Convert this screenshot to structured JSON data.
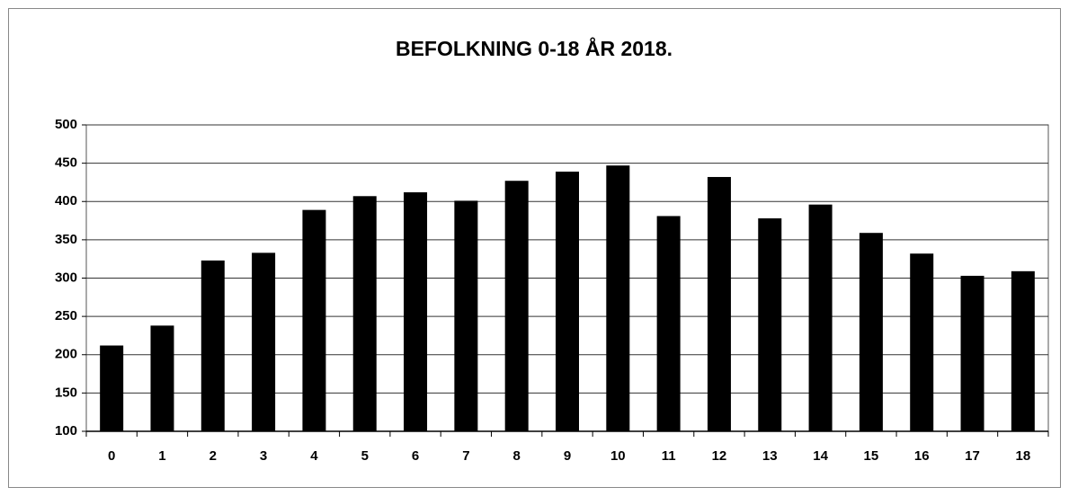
{
  "chart_data": {
    "type": "bar",
    "title": "BEFOLKNING 0-18 ÅR 2018.",
    "categories": [
      "0",
      "1",
      "2",
      "3",
      "4",
      "5",
      "6",
      "7",
      "8",
      "9",
      "10",
      "11",
      "12",
      "13",
      "14",
      "15",
      "16",
      "17",
      "18"
    ],
    "values": [
      212,
      238,
      323,
      333,
      389,
      407,
      412,
      401,
      427,
      439,
      447,
      381,
      432,
      378,
      396,
      359,
      332,
      303,
      309
    ],
    "color": "#000000",
    "ylim": [
      100,
      500
    ],
    "yticks": [
      100,
      150,
      200,
      250,
      300,
      350,
      400,
      450,
      500
    ],
    "grid": true
  }
}
